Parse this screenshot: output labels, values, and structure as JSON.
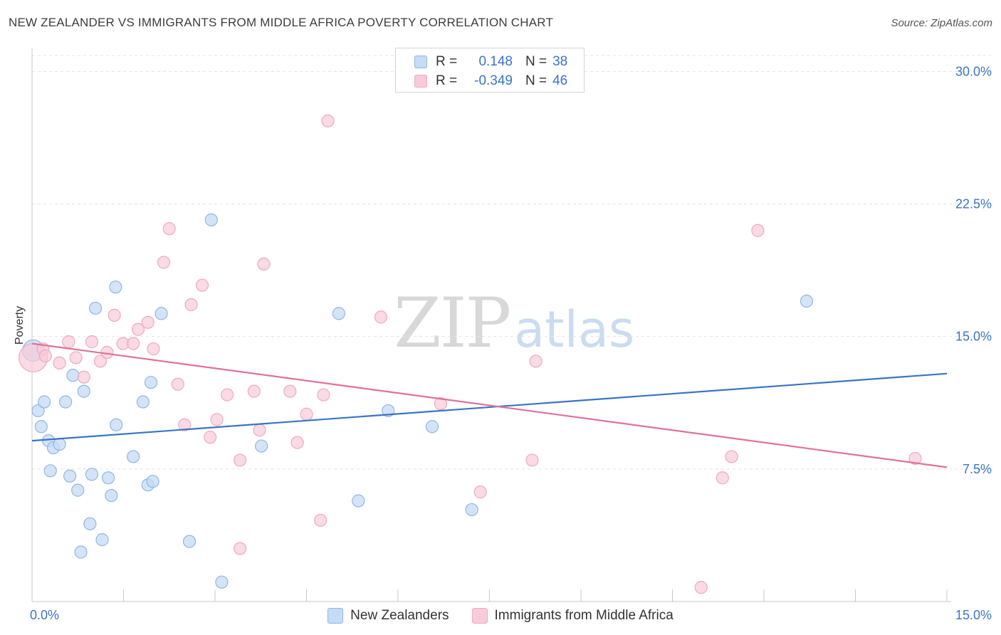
{
  "header": {
    "title": "NEW ZEALANDER VS IMMIGRANTS FROM MIDDLE AFRICA POVERTY CORRELATION CHART",
    "source": "Source: ZipAtlas.com"
  },
  "watermark": {
    "zip": "ZIP",
    "atlas": "atlas"
  },
  "legend": {
    "rows": [
      {
        "r_label": "R =",
        "r_value": "0.148",
        "n_label": "N =",
        "n_value": "38"
      },
      {
        "r_label": "R =",
        "r_value": "-0.349",
        "n_label": "N =",
        "n_value": "46"
      }
    ]
  },
  "bottom_legend": {
    "series1": "New Zealanders",
    "series2": "Immigrants from Middle Africa"
  },
  "chart_data": {
    "type": "scatter",
    "title": "NEW ZEALANDER VS IMMIGRANTS FROM MIDDLE AFRICA POVERTY CORRELATION CHART",
    "xlabel": "",
    "ylabel": "Poverty",
    "xlim": [
      0,
      15
    ],
    "ylim": [
      0,
      30.9
    ],
    "x_tick_labels": [
      "0.0%",
      "15.0%"
    ],
    "y_ticks": [
      7.5,
      15.0,
      22.5,
      30.0
    ],
    "y_tick_labels": [
      "7.5%",
      "15.0%",
      "22.5%",
      "30.0%"
    ],
    "grid": true,
    "colors": {
      "blue": "#3a74c8",
      "blue_fill": "#c6dbf5",
      "blue_stroke": "#8db6e8",
      "pink": "#e0709a",
      "pink_fill": "#f8cbd9",
      "pink_stroke": "#f0a8c0"
    },
    "series": [
      {
        "name": "New Zealanders",
        "color": "#3a74c8",
        "points": [
          [
            0.02,
            14.2
          ],
          [
            0.1,
            10.8
          ],
          [
            0.15,
            9.9
          ],
          [
            0.2,
            11.3
          ],
          [
            0.27,
            9.1
          ],
          [
            0.35,
            8.7
          ],
          [
            0.3,
            7.4
          ],
          [
            0.45,
            8.9
          ],
          [
            0.55,
            11.3
          ],
          [
            0.62,
            7.1
          ],
          [
            0.67,
            12.8
          ],
          [
            0.75,
            6.3
          ],
          [
            0.85,
            11.9
          ],
          [
            0.8,
            2.8
          ],
          [
            0.95,
            4.4
          ],
          [
            0.98,
            7.2
          ],
          [
            1.04,
            16.6
          ],
          [
            1.15,
            3.5
          ],
          [
            1.25,
            7.0
          ],
          [
            1.3,
            6.0
          ],
          [
            1.38,
            10.0
          ],
          [
            1.37,
            17.8
          ],
          [
            1.66,
            8.2
          ],
          [
            1.82,
            11.3
          ],
          [
            1.9,
            6.6
          ],
          [
            1.95,
            12.4
          ],
          [
            1.98,
            6.8
          ],
          [
            2.12,
            16.3
          ],
          [
            2.58,
            3.4
          ],
          [
            2.94,
            21.6
          ],
          [
            3.11,
            1.1
          ],
          [
            3.76,
            8.8
          ],
          [
            5.03,
            16.3
          ],
          [
            5.35,
            5.7
          ],
          [
            5.84,
            10.8
          ],
          [
            6.56,
            9.9
          ],
          [
            7.21,
            5.2
          ],
          [
            12.7,
            17.0
          ]
        ]
      },
      {
        "name": "Immigrants from Middle Africa",
        "color": "#e0709a",
        "points": [
          [
            0.02,
            13.8
          ],
          [
            0.18,
            14.3
          ],
          [
            0.22,
            13.9
          ],
          [
            0.45,
            13.5
          ],
          [
            0.6,
            14.7
          ],
          [
            0.72,
            13.8
          ],
          [
            0.85,
            12.7
          ],
          [
            0.98,
            14.7
          ],
          [
            1.12,
            13.6
          ],
          [
            1.23,
            14.1
          ],
          [
            1.35,
            16.2
          ],
          [
            1.49,
            14.6
          ],
          [
            1.66,
            14.6
          ],
          [
            1.74,
            15.4
          ],
          [
            1.9,
            15.8
          ],
          [
            1.99,
            14.3
          ],
          [
            2.16,
            19.2
          ],
          [
            2.25,
            21.1
          ],
          [
            2.39,
            12.3
          ],
          [
            2.5,
            10.0
          ],
          [
            2.61,
            16.8
          ],
          [
            2.79,
            17.9
          ],
          [
            2.92,
            9.3
          ],
          [
            3.03,
            10.3
          ],
          [
            3.2,
            11.7
          ],
          [
            3.41,
            3.0
          ],
          [
            3.41,
            8.0
          ],
          [
            3.64,
            11.9
          ],
          [
            3.73,
            9.7
          ],
          [
            3.8,
            19.1
          ],
          [
            4.23,
            11.9
          ],
          [
            4.35,
            9.0
          ],
          [
            4.5,
            10.6
          ],
          [
            4.73,
            4.6
          ],
          [
            4.78,
            11.7
          ],
          [
            4.85,
            27.2
          ],
          [
            5.72,
            16.1
          ],
          [
            6.7,
            11.2
          ],
          [
            7.35,
            6.2
          ],
          [
            8.2,
            8.0
          ],
          [
            8.26,
            13.6
          ],
          [
            10.97,
            0.8
          ],
          [
            11.32,
            7.0
          ],
          [
            11.47,
            8.2
          ],
          [
            11.9,
            21.0
          ],
          [
            14.48,
            8.1
          ]
        ]
      }
    ],
    "trend_lines": [
      {
        "series": "New Zealanders",
        "x": [
          0,
          15
        ],
        "y": [
          9.1,
          12.9
        ]
      },
      {
        "series": "Immigrants from Middle Africa",
        "x": [
          0,
          15
        ],
        "y": [
          14.6,
          7.6
        ]
      }
    ]
  }
}
